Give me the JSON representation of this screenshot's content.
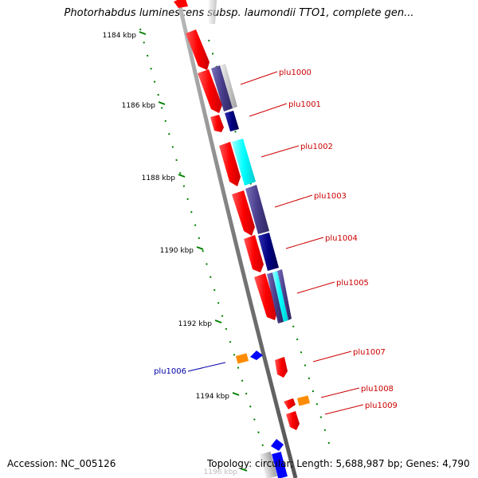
{
  "title": "Photorhabdus luminescens subsp. laumondii TTO1, complete gen...",
  "ruler": [
    {
      "label": "1184 kbp"
    },
    {
      "label": "1186 kbp"
    },
    {
      "label": "1188 kbp"
    },
    {
      "label": "1190 kbp"
    },
    {
      "label": "1192 kbp"
    },
    {
      "label": "1194 kbp"
    },
    {
      "label": "1196 kbp"
    }
  ],
  "genes": [
    {
      "label": "plu1000",
      "color": "#cc0000"
    },
    {
      "label": "plu1001",
      "color": "#cc0000"
    },
    {
      "label": "plu1002",
      "color": "#cc0000"
    },
    {
      "label": "plu1003",
      "color": "#cc0000"
    },
    {
      "label": "plu1004",
      "color": "#cc0000"
    },
    {
      "label": "plu1005",
      "color": "#cc0000"
    },
    {
      "label": "plu1006",
      "color": "#0000aa"
    },
    {
      "label": "plu1007",
      "color": "#cc0000"
    },
    {
      "label": "plu1008",
      "color": "#cc0000"
    },
    {
      "label": "plu1009",
      "color": "#cc0000"
    }
  ],
  "colors": {
    "forward_cds": "#ff0000",
    "reverse_cds": "#0000ff",
    "other_cds": "#ff8c00",
    "cog_navy": "#000080",
    "cog_slate": "#483d8b",
    "cog_cyan": "#00ffff",
    "backbone": "#888888",
    "ruler_tick": "#008000"
  },
  "footer": {
    "accession": "Accession: NC_005126",
    "summary": "Topology: circular; Length: 5,688,987 bp; Genes: 4,790"
  }
}
